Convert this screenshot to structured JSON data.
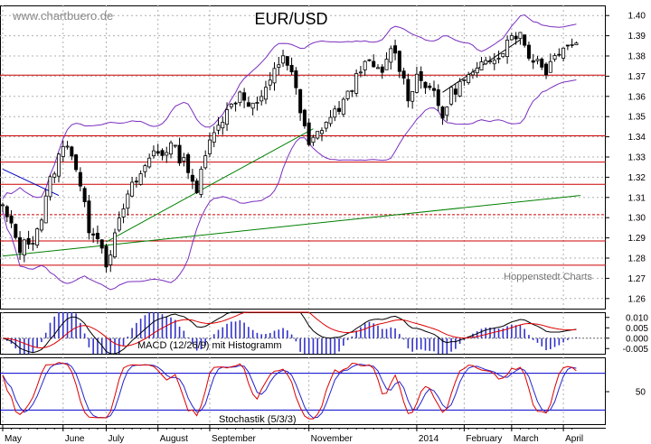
{
  "chart_data": {
    "type": "line",
    "title": "EUR/USD",
    "watermark": "www.chartbuero.de",
    "credit": "Hoppenstedt Charts",
    "x_labels": [
      "May",
      "June",
      "July",
      "August",
      "September",
      "November",
      "2014",
      "February",
      "March",
      "April"
    ],
    "price_panel": {
      "type": "candlestick",
      "y_ticks": [
        "1.40",
        "1.39",
        "1.38",
        "1.37",
        "1.36",
        "1.35",
        "1.34",
        "1.33",
        "1.32",
        "1.31",
        "1.30",
        "1.29",
        "1.28",
        "1.27",
        "1.26"
      ],
      "ylim": [
        1.255,
        1.405
      ],
      "horizontal_levels": [
        1.3705,
        1.3405,
        1.3275,
        1.3165,
        1.3015,
        1.2885,
        1.2765
      ],
      "close_anchors": [
        [
          0,
          1.305
        ],
        [
          4,
          1.285
        ],
        [
          7,
          1.29
        ],
        [
          9,
          1.3
        ],
        [
          11,
          1.318
        ],
        [
          13,
          1.33
        ],
        [
          15,
          1.338
        ],
        [
          17,
          1.325
        ],
        [
          20,
          1.295
        ],
        [
          22,
          1.292
        ],
        [
          24,
          1.278
        ],
        [
          26,
          1.29
        ],
        [
          28,
          1.305
        ],
        [
          30,
          1.315
        ],
        [
          33,
          1.325
        ],
        [
          35,
          1.333
        ],
        [
          37,
          1.332
        ],
        [
          39,
          1.336
        ],
        [
          41,
          1.33
        ],
        [
          43,
          1.325
        ],
        [
          45,
          1.313
        ],
        [
          47,
          1.33
        ],
        [
          49,
          1.345
        ],
        [
          52,
          1.352
        ],
        [
          55,
          1.362
        ],
        [
          58,
          1.355
        ],
        [
          61,
          1.362
        ],
        [
          63,
          1.372
        ],
        [
          65,
          1.381
        ],
        [
          67,
          1.372
        ],
        [
          69,
          1.352
        ],
        [
          71,
          1.335
        ],
        [
          74,
          1.345
        ],
        [
          77,
          1.352
        ],
        [
          80,
          1.36
        ],
        [
          83,
          1.375
        ],
        [
          86,
          1.375
        ],
        [
          88,
          1.37
        ],
        [
          90,
          1.385
        ],
        [
          92,
          1.375
        ],
        [
          94,
          1.36
        ],
        [
          96,
          1.37
        ],
        [
          99,
          1.365
        ],
        [
          102,
          1.35
        ],
        [
          104,
          1.362
        ],
        [
          107,
          1.368
        ],
        [
          110,
          1.372
        ],
        [
          113,
          1.379
        ],
        [
          116,
          1.383
        ],
        [
          118,
          1.392
        ],
        [
          120,
          1.39
        ],
        [
          122,
          1.38
        ],
        [
          124,
          1.378
        ],
        [
          126,
          1.373
        ],
        [
          128,
          1.38
        ],
        [
          130,
          1.386
        ]
      ],
      "trendlines": [
        {
          "name": "uptrend",
          "color": "#008000",
          "from": [
            0,
            1.281
          ],
          "to": [
            134,
            1.311
          ]
        },
        {
          "name": "medium uptrend",
          "color": "#008000",
          "from": [
            24,
            1.288
          ],
          "to": [
            72,
            1.344
          ]
        },
        {
          "name": "downtrend",
          "color": "#0000c0",
          "from": [
            0,
            1.324
          ],
          "to": [
            13,
            1.311
          ]
        },
        {
          "name": "short trend",
          "color": "#000000",
          "from": [
            102,
            1.362
          ],
          "to": [
            120,
            1.388
          ]
        }
      ],
      "bollinger_color": "#7b2fbf"
    },
    "macd_panel": {
      "label": "MACD (12/26/9) mit Histogramm",
      "y_ticks": [
        "0.010",
        "0.005",
        "0.000",
        "-0.005"
      ],
      "ylim": [
        -0.0075,
        0.0125
      ]
    },
    "stochastic_panel": {
      "label": "Stochastik (5/3/3)",
      "y_ticks": [
        "50"
      ],
      "ylim": [
        0,
        100
      ],
      "levels": [
        80,
        20
      ]
    },
    "colors": {
      "candle": "#000000",
      "level": "#cc0000",
      "grid": "#b0b0b0",
      "macd_line": "#000000",
      "signal_line": "#dd0000",
      "histogram": "#3333cc",
      "stoch_k": "#dd0000",
      "stoch_d": "#2222cc",
      "stoch_level": "#0000cc"
    }
  }
}
